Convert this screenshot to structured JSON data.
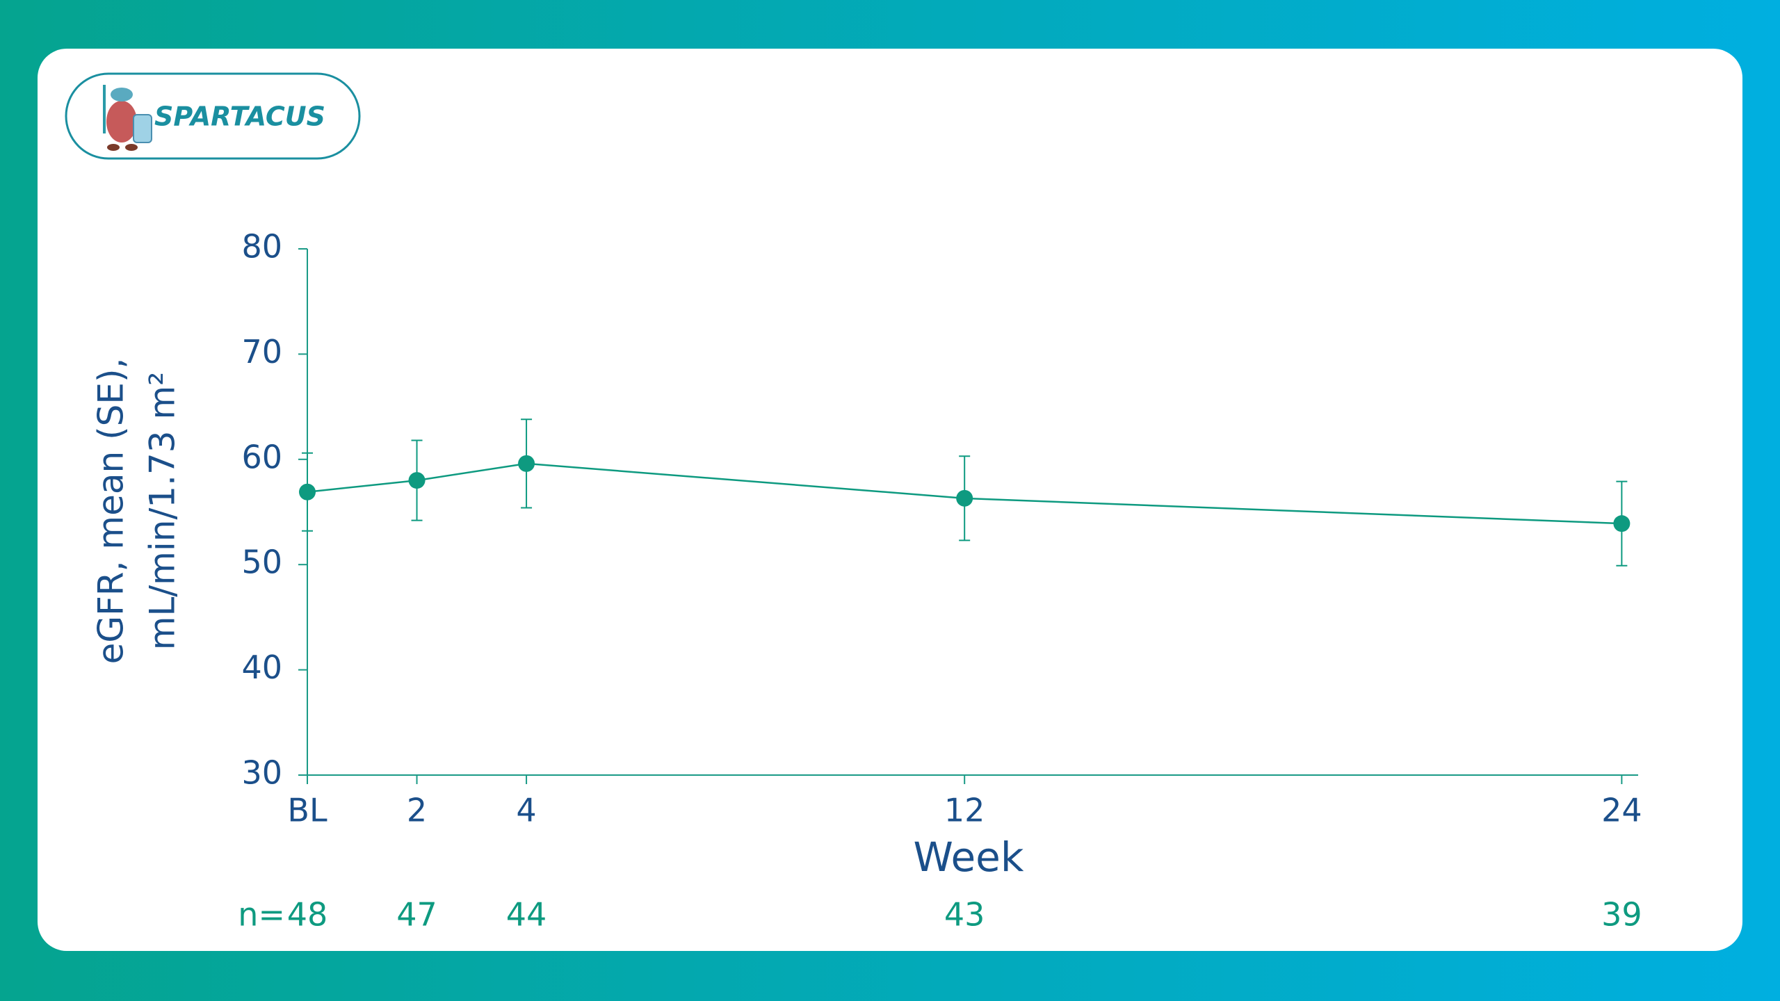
{
  "logo": {
    "text": "SPARTACUS"
  },
  "chart_data": {
    "type": "line",
    "x": [
      0,
      2,
      4,
      12,
      24
    ],
    "values": [
      56.9,
      58.0,
      59.6,
      56.3,
      53.9
    ],
    "errors": [
      3.7,
      3.8,
      4.2,
      4.0,
      4.0
    ],
    "color": "#0e9a80",
    "xlabel": "Week",
    "ylabel": [
      "eGFR, mean (SE),",
      "mL/min/1.73 m²"
    ],
    "xlim": [
      0,
      24.3
    ],
    "xticks": [
      {
        "value": 0,
        "label": "BL"
      },
      2,
      4,
      12,
      24
    ],
    "ylim": [
      30,
      80
    ],
    "yticks": [
      30,
      40,
      50,
      60,
      70,
      80
    ],
    "n_label": "n=",
    "n_values": [
      48,
      47,
      44,
      43,
      39
    ]
  }
}
